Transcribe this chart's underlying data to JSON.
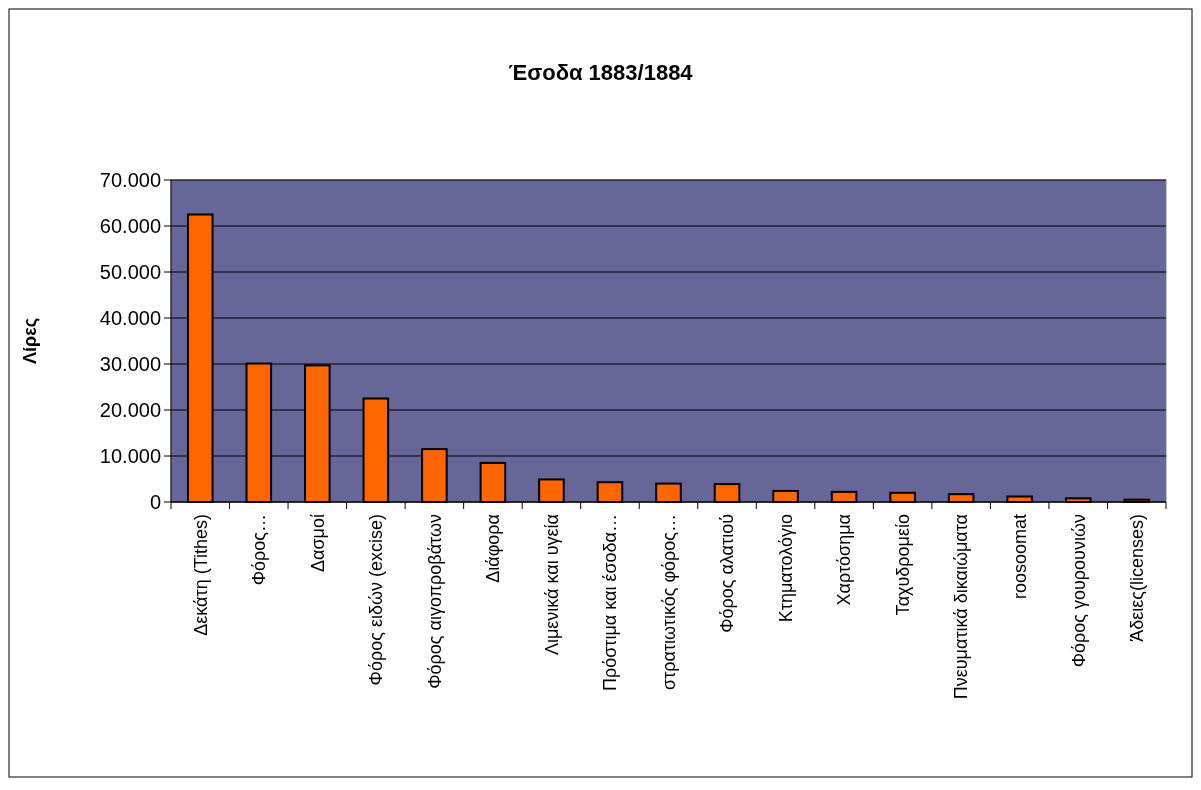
{
  "chart_data": {
    "type": "bar",
    "title": "Έσοδα 1883/1884",
    "ylabel": "Λίρες",
    "categories": [
      "Δεκάτη (Tithes)",
      "Φόρος…",
      "Δασμοί",
      "Φόρος ειδών (excise)",
      "Φόρος αιγοπροβάτων",
      "Διάφορα",
      "Λιμενικά και υγεία",
      "Πρόστιμα και έσοδα…",
      "στρατιωτικός φόρος…",
      "Φόρος αλατιού",
      "Κτηματολόγιο",
      "Χαρτόσημα",
      "Ταχυδρομείο",
      "Πνευματικά δικαιώματα",
      "roosoomat",
      "Φόρος γουρουνιών",
      "Άδειες(licenses)"
    ],
    "values": [
      62500,
      30100,
      29700,
      22500,
      11500,
      8500,
      4900,
      4300,
      4000,
      3900,
      2400,
      2200,
      2000,
      1700,
      1200,
      800,
      500
    ],
    "color": "#ff6600",
    "ylim": [
      0,
      70000
    ],
    "yticks": [
      0,
      {
        "value": 10000,
        "label": "10.000"
      },
      {
        "value": 20000,
        "label": "20.000"
      },
      {
        "value": 30000,
        "label": "30.000"
      },
      {
        "value": 40000,
        "label": "40.000"
      },
      {
        "value": 50000,
        "label": "50.000"
      },
      {
        "value": 60000,
        "label": "60.000"
      },
      {
        "value": 70000,
        "label": "70.000"
      }
    ],
    "grid": "y"
  }
}
